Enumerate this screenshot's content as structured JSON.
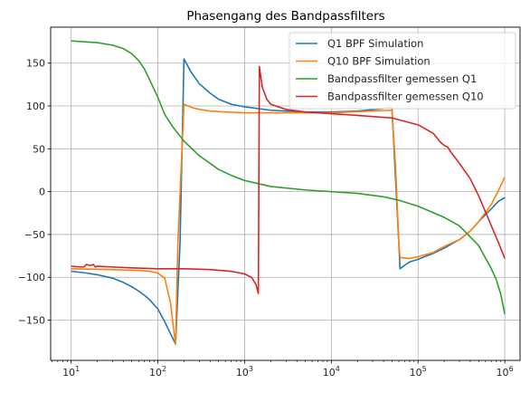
{
  "chart_data": {
    "type": "line",
    "title": "Phasengang des Bandpassfilters",
    "xlabel": "",
    "ylabel": "",
    "x_scale": "log",
    "xlim": [
      5.8,
      1500000
    ],
    "ylim": [
      -197,
      192
    ],
    "x_ticks": [
      {
        "value": 10,
        "base": "10",
        "exp": "1"
      },
      {
        "value": 100,
        "base": "10",
        "exp": "2"
      },
      {
        "value": 1000,
        "base": "10",
        "exp": "3"
      },
      {
        "value": 10000,
        "base": "10",
        "exp": "4"
      },
      {
        "value": 100000,
        "base": "10",
        "exp": "5"
      },
      {
        "value": 1000000,
        "base": "10",
        "exp": "6"
      }
    ],
    "y_ticks": [
      {
        "value": -150,
        "label": "−150"
      },
      {
        "value": -100,
        "label": "−100"
      },
      {
        "value": -50,
        "label": "−50"
      },
      {
        "value": 0,
        "label": "0"
      },
      {
        "value": 50,
        "label": "50"
      },
      {
        "value": 100,
        "label": "100"
      },
      {
        "value": 150,
        "label": "150"
      }
    ],
    "grid": true,
    "legend_position": "top-right",
    "series": [
      {
        "name": "Q1 BPF Simulation",
        "color": "#1f77b4",
        "points": [
          [
            10,
            -93
          ],
          [
            15,
            -95
          ],
          [
            20,
            -97
          ],
          [
            30,
            -101
          ],
          [
            40,
            -106
          ],
          [
            50,
            -111
          ],
          [
            60,
            -116
          ],
          [
            70,
            -121
          ],
          [
            80,
            -126
          ],
          [
            100,
            -137
          ],
          [
            120,
            -152
          ],
          [
            140,
            -166
          ],
          [
            160,
            -178
          ],
          [
            180,
            -60
          ],
          [
            200,
            155
          ],
          [
            240,
            140
          ],
          [
            300,
            126
          ],
          [
            400,
            115
          ],
          [
            500,
            108
          ],
          [
            700,
            102
          ],
          [
            1000,
            99
          ],
          [
            2000,
            95
          ],
          [
            5000,
            93
          ],
          [
            10000,
            93
          ],
          [
            20000,
            94
          ],
          [
            40000,
            97
          ],
          [
            50000,
            98
          ],
          [
            60000,
            -60
          ],
          [
            62000,
            -90
          ],
          [
            70000,
            -86
          ],
          [
            80000,
            -82
          ],
          [
            100000,
            -79
          ],
          [
            150000,
            -72
          ],
          [
            200000,
            -66
          ],
          [
            300000,
            -56
          ],
          [
            400000,
            -46
          ],
          [
            500000,
            -35
          ],
          [
            700000,
            -20
          ],
          [
            850000,
            -11
          ],
          [
            1000000,
            -7
          ]
        ]
      },
      {
        "name": "Q10 BPF Simulation",
        "color": "#ff7f0e",
        "points": [
          [
            10,
            -90
          ],
          [
            30,
            -91
          ],
          [
            60,
            -92
          ],
          [
            80,
            -93
          ],
          [
            100,
            -95
          ],
          [
            120,
            -101
          ],
          [
            140,
            -130
          ],
          [
            155,
            -168
          ],
          [
            160,
            -178
          ],
          [
            170,
            -60
          ],
          [
            200,
            102
          ],
          [
            250,
            98
          ],
          [
            300,
            96
          ],
          [
            400,
            94
          ],
          [
            600,
            93
          ],
          [
            1000,
            92
          ],
          [
            5000,
            92
          ],
          [
            10000,
            92
          ],
          [
            50000,
            95
          ],
          [
            55000,
            30
          ],
          [
            60000,
            -60
          ],
          [
            62000,
            -77
          ],
          [
            80000,
            -78
          ],
          [
            100000,
            -76
          ],
          [
            150000,
            -71
          ],
          [
            200000,
            -64
          ],
          [
            300000,
            -56
          ],
          [
            400000,
            -46
          ],
          [
            500000,
            -35
          ],
          [
            700000,
            -15
          ],
          [
            850000,
            2
          ],
          [
            1000000,
            17
          ]
        ]
      },
      {
        "name": "Bandpassfilter gemessen Q1",
        "color": "#2ca02c",
        "points": [
          [
            10,
            176
          ],
          [
            20,
            174
          ],
          [
            30,
            171
          ],
          [
            40,
            167
          ],
          [
            50,
            161
          ],
          [
            60,
            153
          ],
          [
            70,
            143
          ],
          [
            80,
            131
          ],
          [
            100,
            110
          ],
          [
            120,
            90
          ],
          [
            150,
            75
          ],
          [
            200,
            59
          ],
          [
            300,
            42
          ],
          [
            400,
            33
          ],
          [
            500,
            26
          ],
          [
            700,
            19
          ],
          [
            1000,
            13
          ],
          [
            2000,
            6
          ],
          [
            5000,
            2
          ],
          [
            10000,
            0
          ],
          [
            20000,
            -2
          ],
          [
            40000,
            -6
          ],
          [
            60000,
            -10
          ],
          [
            100000,
            -17
          ],
          [
            200000,
            -30
          ],
          [
            300000,
            -40
          ],
          [
            500000,
            -63
          ],
          [
            700000,
            -90
          ],
          [
            800000,
            -103
          ],
          [
            900000,
            -120
          ],
          [
            1000000,
            -143
          ]
        ]
      },
      {
        "name": "Bandpassfilter gemessen Q10",
        "color": "#d62728",
        "points": [
          [
            10,
            -87
          ],
          [
            13,
            -88
          ],
          [
            14,
            -88
          ],
          [
            15,
            -85
          ],
          [
            16,
            -86
          ],
          [
            17,
            -86
          ],
          [
            18,
            -85
          ],
          [
            19,
            -88
          ],
          [
            20,
            -87
          ],
          [
            30,
            -88
          ],
          [
            50,
            -89
          ],
          [
            100,
            -90
          ],
          [
            200,
            -90
          ],
          [
            400,
            -91
          ],
          [
            700,
            -93
          ],
          [
            1000,
            -96
          ],
          [
            1200,
            -100
          ],
          [
            1350,
            -108
          ],
          [
            1440,
            -119
          ],
          [
            1480,
            146
          ],
          [
            1600,
            122
          ],
          [
            1800,
            108
          ],
          [
            2000,
            102
          ],
          [
            3000,
            96
          ],
          [
            5000,
            93
          ],
          [
            10000,
            91
          ],
          [
            20000,
            89
          ],
          [
            50000,
            86
          ],
          [
            100000,
            78
          ],
          [
            150000,
            68
          ],
          [
            180000,
            58
          ],
          [
            200000,
            54
          ],
          [
            220000,
            52
          ],
          [
            240000,
            46
          ],
          [
            300000,
            33
          ],
          [
            400000,
            15
          ],
          [
            500000,
            -5
          ],
          [
            700000,
            -40
          ],
          [
            850000,
            -60
          ],
          [
            1000000,
            -78
          ]
        ]
      }
    ]
  }
}
